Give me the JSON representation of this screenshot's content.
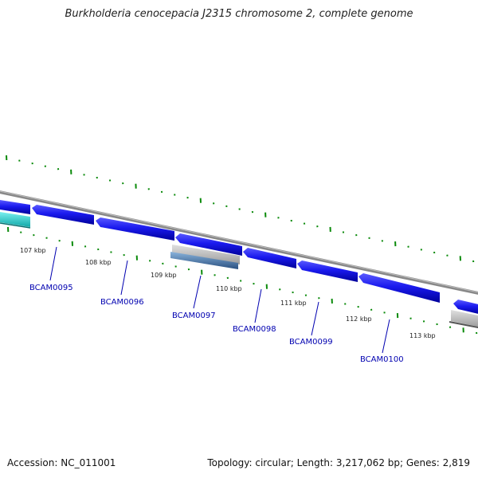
{
  "title": "Burkholderia cenocepacia J2315 chromosome 2, complete genome",
  "footer": {
    "accession": "Accession: NC_011001",
    "summary": "Topology: circular; Length: 3,217,062 bp; Genes: 2,819"
  },
  "kbp_labels": [
    "107 kbp",
    "108 kbp",
    "109 kbp",
    "110 kbp",
    "111 kbp",
    "112 kbp",
    "113 kbp"
  ],
  "gene_labels": [
    "BCAM0095",
    "BCAM0096",
    "BCAM0097",
    "BCAM0098",
    "BCAM0099",
    "BCAM0100"
  ],
  "colors": {
    "backbone": "#888888",
    "gene": "#1a1aee",
    "gene_label": "#0000b0",
    "tick": "#0a8a0a",
    "cyan_feature": "#22cccc",
    "gray_feature": "#bbbbbb",
    "steel_feature": "#4a78a8"
  }
}
